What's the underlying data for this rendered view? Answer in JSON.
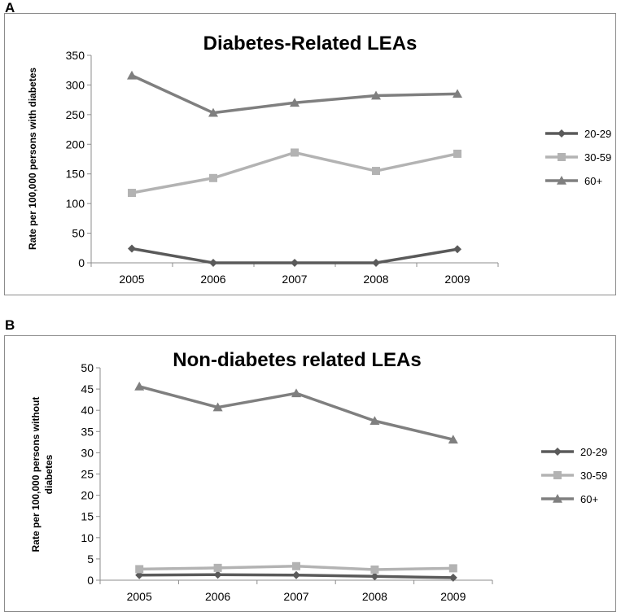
{
  "panels": {
    "a": {
      "letter": "A"
    },
    "b": {
      "letter": "B"
    }
  },
  "chart_data": [
    {
      "type": "line",
      "title": "Diabetes-Related LEAs",
      "xlabel": "",
      "ylabel": "Rate per 100,000 persons with diabetes",
      "categories": [
        "2005",
        "2006",
        "2007",
        "2008",
        "2009"
      ],
      "ylim": [
        0,
        350
      ],
      "yticks": [
        0,
        50,
        100,
        150,
        200,
        250,
        300,
        350
      ],
      "legend_position": "right",
      "series": [
        {
          "name": "20-29",
          "values": [
            24,
            0,
            0,
            0,
            23
          ],
          "color": "#5a5a5a",
          "marker": "diamond"
        },
        {
          "name": "30-59",
          "values": [
            118,
            143,
            186,
            155,
            184
          ],
          "color": "#b3b3b3",
          "marker": "square"
        },
        {
          "name": "60+",
          "values": [
            316,
            253,
            270,
            282,
            285
          ],
          "color": "#7f7f7f",
          "marker": "triangle"
        }
      ]
    },
    {
      "type": "line",
      "title": "Non-diabetes related LEAs",
      "xlabel": "",
      "ylabel_lines": [
        "Rate per 100,000 persons without",
        "diabetes"
      ],
      "categories": [
        "2005",
        "2006",
        "2007",
        "2008",
        "2009"
      ],
      "ylim": [
        0,
        50
      ],
      "yticks": [
        0,
        5,
        10,
        15,
        20,
        25,
        30,
        35,
        40,
        45,
        50
      ],
      "legend_position": "right",
      "series": [
        {
          "name": "20-29",
          "values": [
            1.2,
            1.3,
            1.2,
            0.9,
            0.6
          ],
          "color": "#5a5a5a",
          "marker": "diamond"
        },
        {
          "name": "30-59",
          "values": [
            2.6,
            2.9,
            3.3,
            2.5,
            2.8
          ],
          "color": "#b3b3b3",
          "marker": "square"
        },
        {
          "name": "60+",
          "values": [
            45.6,
            40.7,
            44.0,
            37.5,
            33.1
          ],
          "color": "#7f7f7f",
          "marker": "triangle"
        }
      ]
    }
  ]
}
